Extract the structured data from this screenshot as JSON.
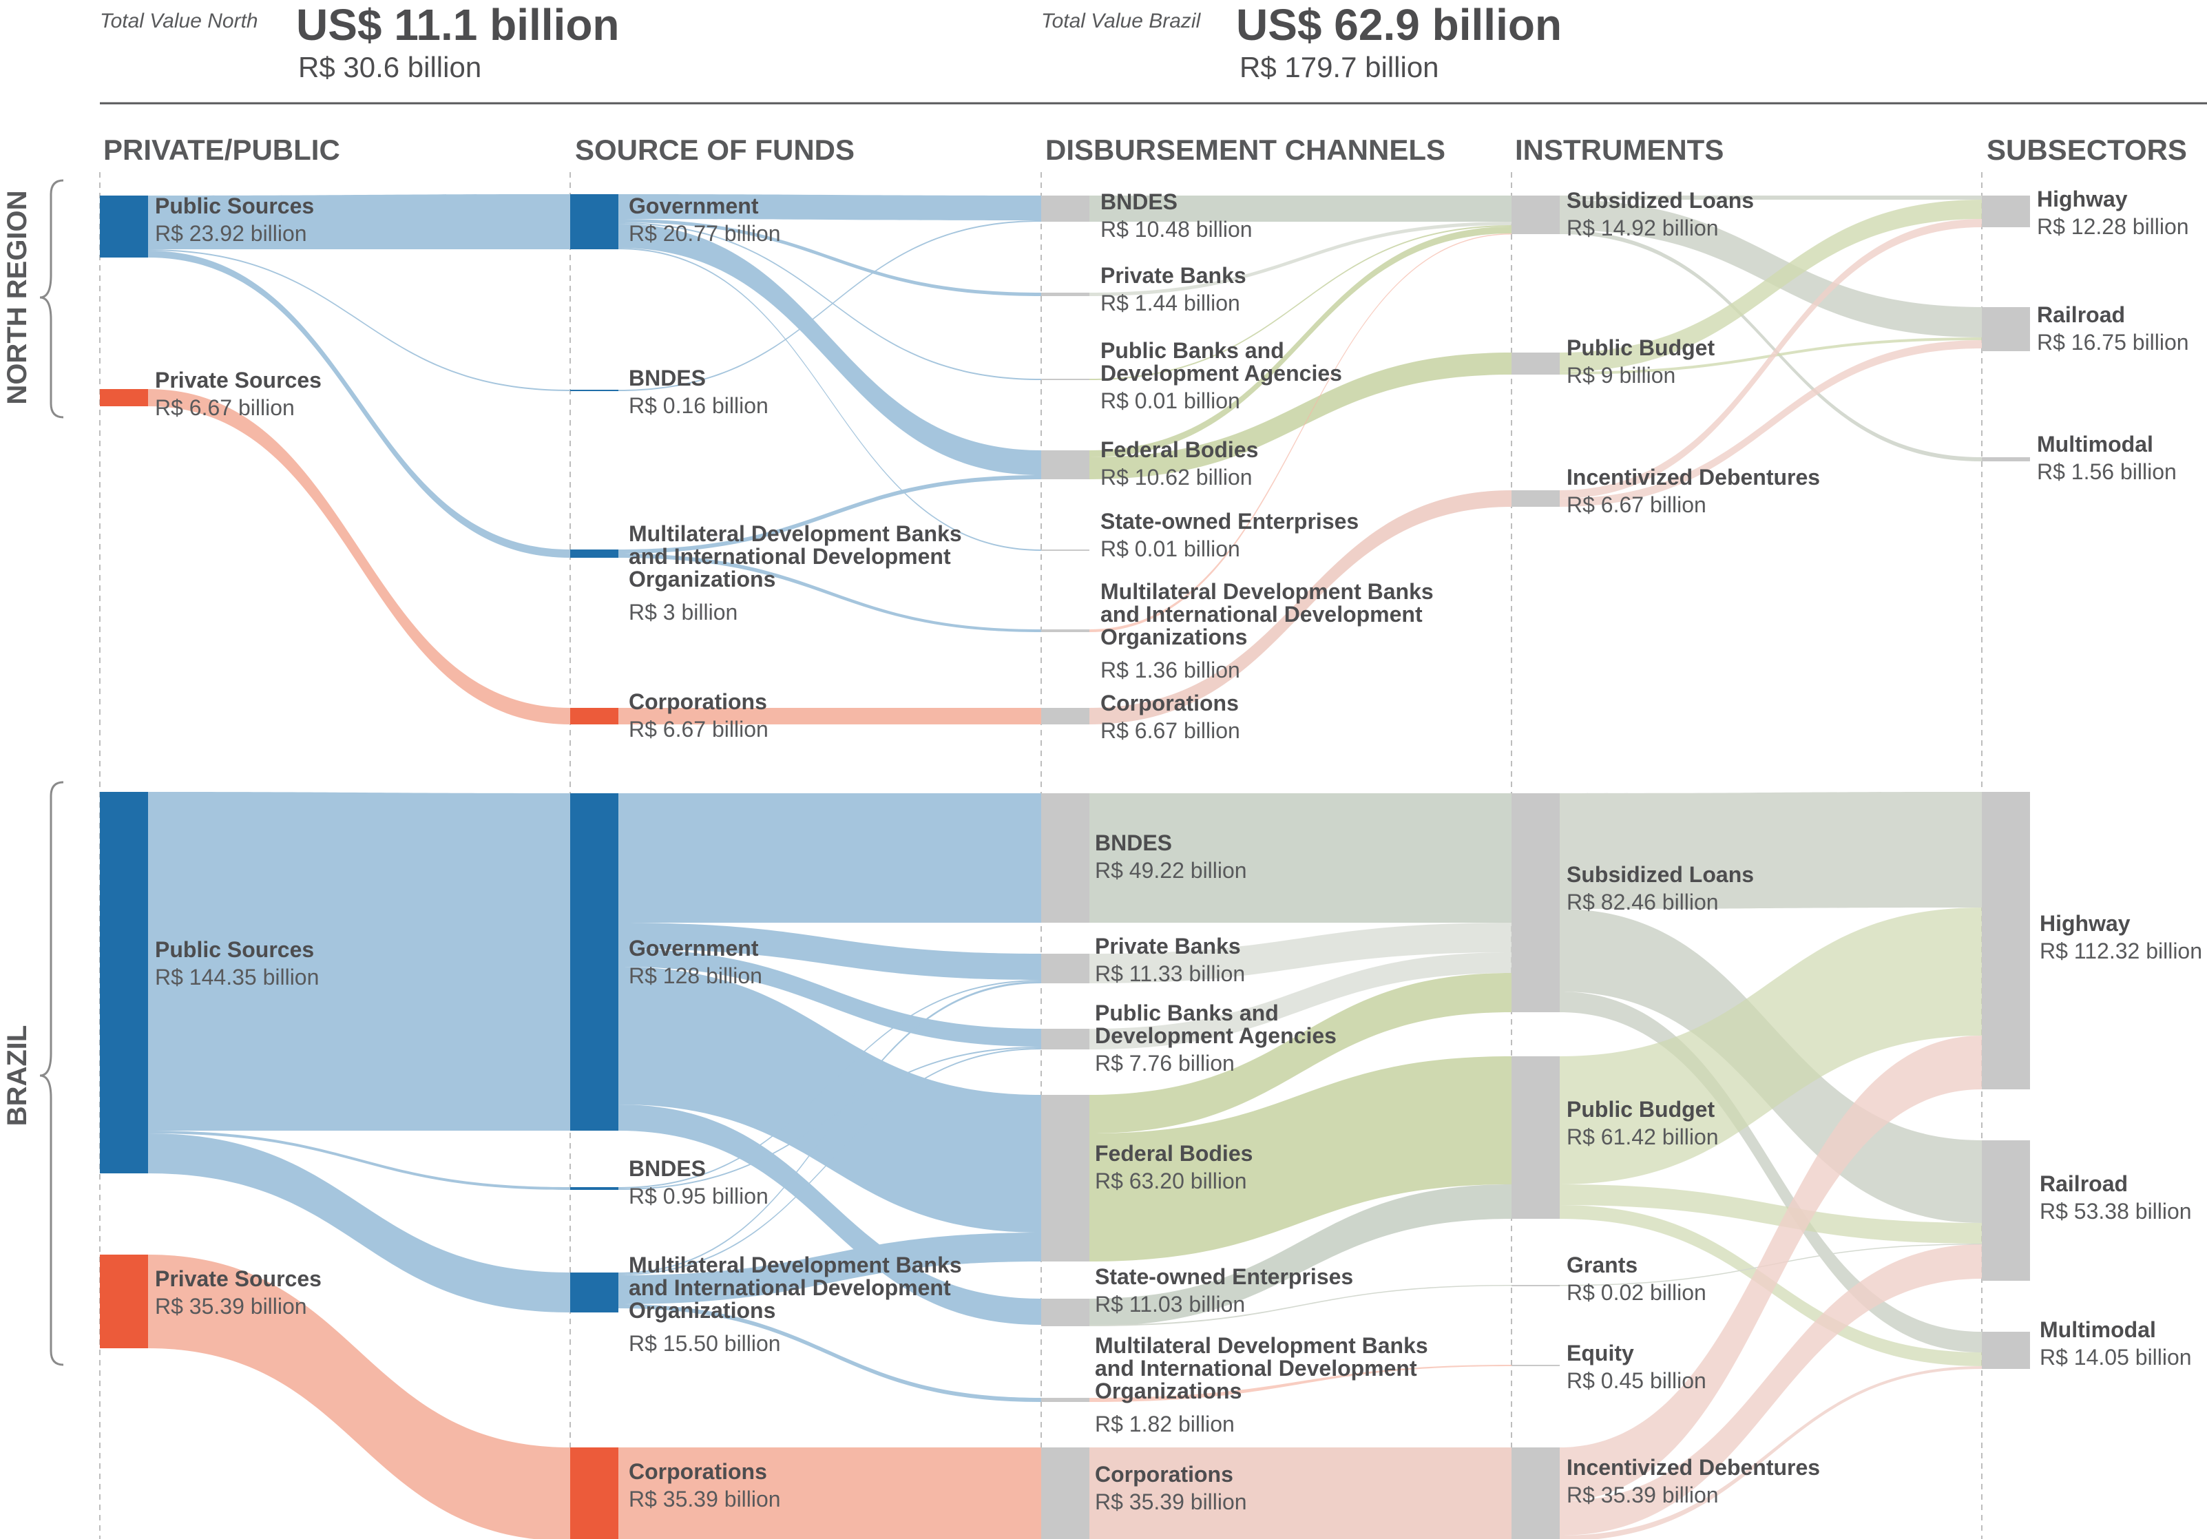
{
  "header": {
    "north": {
      "label": "Total Value North",
      "usd": "US$ 11.1 billion",
      "brl": "R$ 30.6 billion"
    },
    "brazil": {
      "label": "Total Value Brazil",
      "usd": "US$ 62.9 billion",
      "brl": "R$ 179.7 billion"
    }
  },
  "columns": [
    "PRIVATE/PUBLIC",
    "SOURCE OF FUNDS",
    "DISBURSEMENT CHANNELS",
    "INSTRUMENTS",
    "SUBSECTORS"
  ],
  "regions": {
    "north": "NORTH REGION",
    "brazil": "BRAZIL"
  },
  "colors": {
    "public_node": "#1f6ea9",
    "private_node": "#ec5b3a",
    "gray_node": "#c8c8c8",
    "public_flow": "#a5c5dd",
    "private_flow": "#f5b8a6",
    "bndes_flow": "#cdd5cb",
    "green_flow": "#cfd9b0",
    "incentive_flow": "#efd0c8",
    "subsidized_flow": "#d4d9d0"
  },
  "north": {
    "nodes": {
      "pub": {
        "name": "Public Sources",
        "value": "R$ 23.92 billion"
      },
      "priv": {
        "name": "Private Sources",
        "value": "R$ 6.67 billion"
      },
      "gov": {
        "name": "Government",
        "value": "R$ 20.77 billion"
      },
      "bndesS": {
        "name": "BNDES",
        "value": "R$ 0.16 billion"
      },
      "mdbS": {
        "name": "Multilateral Development Banks and International Development Organizations",
        "value": "R$ 3 billion"
      },
      "corpS": {
        "name": "Corporations",
        "value": "R$ 6.67 billion"
      },
      "bndesC": {
        "name": "BNDES",
        "value": "R$ 10.48 billion"
      },
      "pbank": {
        "name": "Private Banks",
        "value": "R$ 1.44 billion"
      },
      "pubbank": {
        "name": "Public Banks and Development Agencies",
        "value": "R$ 0.01 billion"
      },
      "fed": {
        "name": "Federal Bodies",
        "value": "R$ 10.62 billion"
      },
      "soe": {
        "name": "State-owned Enterprises",
        "value": "R$ 0.01 billion"
      },
      "mdbC": {
        "name": "Multilateral Development Banks and International Development Organizations",
        "value": "R$ 1.36 billion"
      },
      "corpC": {
        "name": "Corporations",
        "value": "R$ 6.67 billion"
      },
      "sub": {
        "name": "Subsidized Loans",
        "value": "R$ 14.92 billion"
      },
      "budget": {
        "name": "Public Budget",
        "value": "R$ 9 billion"
      },
      "deb": {
        "name": "Incentivized Debentures",
        "value": "R$ 6.67 billion"
      },
      "hwy": {
        "name": "Highway",
        "value": "R$ 12.28 billion"
      },
      "rail": {
        "name": "Railroad",
        "value": "R$ 16.75 billion"
      },
      "multi": {
        "name": "Multimodal",
        "value": "R$ 1.56 billion"
      }
    }
  },
  "brazil": {
    "nodes": {
      "pub": {
        "name": "Public Sources",
        "value": "R$ 144.35 billion"
      },
      "priv": {
        "name": "Private Sources",
        "value": "R$ 35.39 billion"
      },
      "gov": {
        "name": "Government",
        "value": "R$ 128 billion"
      },
      "bndesS": {
        "name": "BNDES",
        "value": "R$ 0.95 billion"
      },
      "mdbS": {
        "name": "Multilateral Development Banks and International Development Organizations",
        "value": "R$ 15.50 billion"
      },
      "corpS": {
        "name": "Corporations",
        "value": "R$ 35.39 billion"
      },
      "bndesC": {
        "name": "BNDES",
        "value": "R$ 49.22 billion"
      },
      "pbank": {
        "name": "Private Banks",
        "value": "R$ 11.33 billion"
      },
      "pubbank": {
        "name": "Public Banks and Development Agencies",
        "value": "R$ 7.76 billion"
      },
      "fed": {
        "name": "Federal Bodies",
        "value": "R$ 63.20 billion"
      },
      "soe": {
        "name": "State-owned Enterprises",
        "value": "R$ 11.03 billion"
      },
      "mdbC": {
        "name": "Multilateral Development Banks and International Development Organizations",
        "value": "R$ 1.82 billion"
      },
      "corpC": {
        "name": "Corporations",
        "value": "R$ 35.39 billion"
      },
      "sub": {
        "name": "Subsidized Loans",
        "value": "R$ 82.46 billion"
      },
      "budget": {
        "name": "Public Budget",
        "value": "R$ 61.42 billion"
      },
      "grants": {
        "name": "Grants",
        "value": "R$ 0.02 billion"
      },
      "equity": {
        "name": "Equity",
        "value": "R$ 0.45 billion"
      },
      "deb": {
        "name": "Incentivized Debentures",
        "value": "R$ 35.39 billion"
      },
      "hwy": {
        "name": "Highway",
        "value": "R$ 112.32 billion"
      },
      "rail": {
        "name": "Railroad",
        "value": "R$ 53.38 billion"
      },
      "multi": {
        "name": "Multimodal",
        "value": "R$ 14.05 billion"
      }
    }
  }
}
